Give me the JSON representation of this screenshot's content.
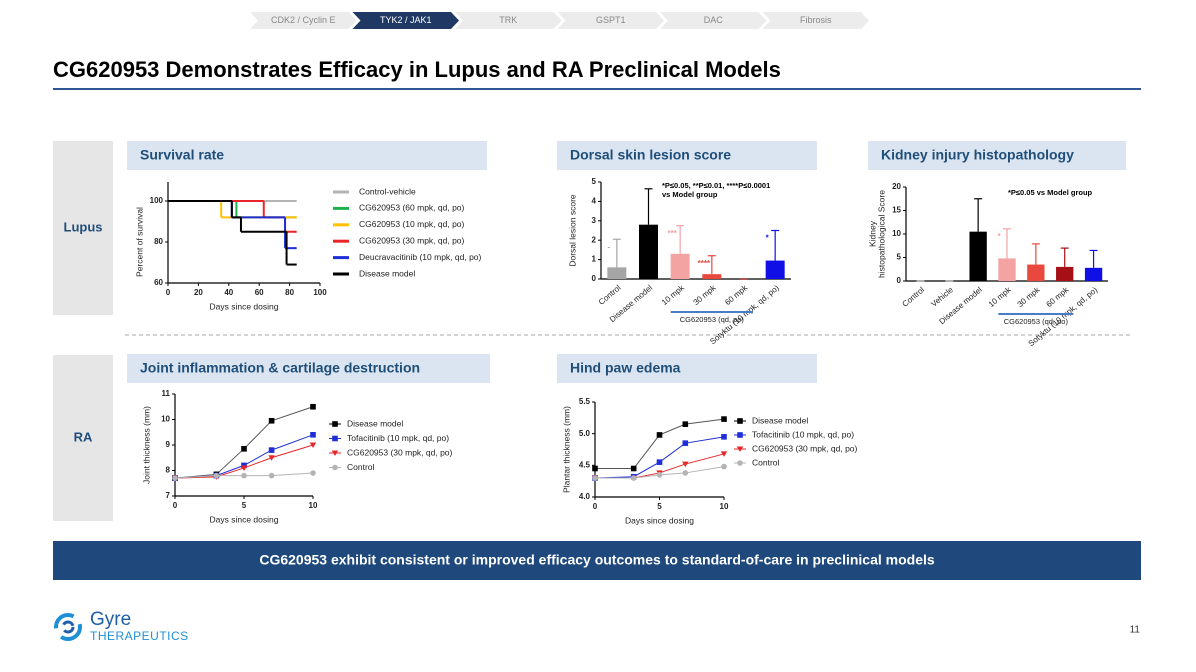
{
  "nav": {
    "tabs": [
      "CDK2 / Cyclin E",
      "TYK2 / JAK1",
      "TRK",
      "GSPT1",
      "DAC",
      "Fibrosis"
    ],
    "active": 1
  },
  "header": {
    "title": "CG620953 Demonstrates Efficacy in Lupus and RA Preclinical Models"
  },
  "sections": [
    "Lupus",
    "RA"
  ],
  "chart_data": [
    {
      "type": "step",
      "title": "Survival rate",
      "xlabel": "Days since dosing",
      "ylabel": "Percent of survival",
      "xlim": [
        0,
        100
      ],
      "xticks": [
        0,
        20,
        40,
        60,
        80,
        100
      ],
      "ylim": [
        60,
        100
      ],
      "yticks": [
        60,
        80,
        100
      ],
      "series": [
        {
          "name": "Control-vehicle",
          "color": "#b4b4b4",
          "x": [
            0,
            84
          ],
          "values": [
            100,
            100
          ]
        },
        {
          "name": "CG620953 (60 mpk, qd, po)",
          "color": "#1fb04b",
          "x": [
            0,
            45,
            84
          ],
          "values": [
            100,
            92,
            92
          ]
        },
        {
          "name": "CG620953 (10 mpk, qd, po)",
          "color": "#ffc000",
          "x": [
            0,
            35,
            84
          ],
          "values": [
            100,
            92,
            92
          ]
        },
        {
          "name": "CG620953 (30 mpk, qd, po)",
          "color": "#e8262a",
          "x": [
            0,
            63,
            77,
            84
          ],
          "values": [
            100,
            92,
            85,
            85
          ]
        },
        {
          "name": "Deucravacitinib (10 mpk, qd, po)",
          "color": "#1f2fd8",
          "x": [
            0,
            42,
            77,
            84
          ],
          "values": [
            100,
            92,
            77,
            77
          ]
        },
        {
          "name": "Disease model",
          "color": "#000000",
          "x": [
            0,
            42,
            48,
            75,
            78,
            84
          ],
          "values": [
            100,
            92,
            85,
            85,
            69,
            69
          ]
        }
      ]
    },
    {
      "type": "bar",
      "title": "Dorsal skin lesion score",
      "ylabel": "Dorsal lesion score",
      "note": [
        "*P≤0.05, **P≤0.01, ****P≤0.0001",
        "vs Model group"
      ],
      "group_label": "CG620953 (qd, po)",
      "categories": [
        "Control",
        "Disease model",
        "10 mpk",
        "30 mpk",
        "60 mpk",
        "Sotyktu (10 mpk, qd, po)"
      ],
      "values": [
        0.6,
        2.8,
        1.3,
        0.25,
        0,
        0.95
      ],
      "errors": [
        1.45,
        1.85,
        1.45,
        0.95,
        0,
        1.55
      ],
      "colors": [
        "#a6a6a6",
        "#000000",
        "#f4a3a3",
        "#e8483e",
        "#a50f15",
        "#1010e6"
      ],
      "sig": [
        "-",
        null,
        "***",
        "****",
        null,
        "*"
      ],
      "ylim": [
        0,
        5
      ],
      "yticks": [
        0,
        1,
        2,
        3,
        4,
        5
      ]
    },
    {
      "type": "bar",
      "title": "Kidney injury histopathology",
      "ylabel": [
        "Kidney",
        "histopathological Score"
      ],
      "note": [
        "*P≤0.05 vs Model group"
      ],
      "group_label": "CG620953 (qd, po)",
      "categories": [
        "Control",
        "Vehicle",
        "Disease model",
        "10 mpk",
        "30 mpk",
        "60 mpk",
        "Sotyktu (10 mpk, qd, po)"
      ],
      "values": [
        0,
        0,
        10.5,
        4.8,
        3.5,
        3,
        2.8
      ],
      "errors": [
        0,
        0,
        7,
        6.3,
        4.4,
        4,
        3.7
      ],
      "colors": [
        "#a6a6a6",
        "#a6a6a6",
        "#000000",
        "#f4a3a3",
        "#e8483e",
        "#a50f15",
        "#1010e6"
      ],
      "sig": [
        null,
        null,
        null,
        "*",
        null,
        null,
        null
      ],
      "ylim": [
        0,
        20
      ],
      "yticks": [
        0,
        5,
        10,
        15,
        20
      ]
    },
    {
      "type": "line",
      "title": "Joint inflammation & cartilage destruction",
      "xlabel": "Days since dosing",
      "ylabel": "Joint thickness (mm)",
      "x": [
        0,
        3,
        5,
        7,
        10
      ],
      "xlim": [
        0,
        10
      ],
      "xticks": [
        0,
        5,
        10
      ],
      "ylim": [
        7,
        11
      ],
      "yticks": [
        7,
        8,
        9,
        10,
        11
      ],
      "series": [
        {
          "name": "Disease model",
          "color": "#000000",
          "marker": "square",
          "values": [
            7.7,
            7.85,
            8.85,
            9.95,
            10.5
          ]
        },
        {
          "name": "Tofacitinib (10 mpk, qd, po)",
          "color": "#1f2fd8",
          "marker": "square",
          "values": [
            7.7,
            7.8,
            8.2,
            8.8,
            9.4
          ]
        },
        {
          "name": "CG620953 (30 mpk, qd, po)",
          "color": "#e8262a",
          "marker": "triangle",
          "values": [
            7.7,
            7.75,
            8.1,
            8.5,
            9.0
          ]
        },
        {
          "name": "Control",
          "color": "#b4b4b4",
          "marker": "circle",
          "values": [
            7.7,
            7.8,
            7.8,
            7.8,
            7.9
          ]
        }
      ]
    },
    {
      "type": "line",
      "title": "Hind paw edema",
      "xlabel": "Days since dosing",
      "ylabel": "Plantar thickness (mm)",
      "x": [
        0,
        3,
        5,
        7,
        10
      ],
      "xlim": [
        0,
        10
      ],
      "xticks": [
        0,
        5,
        10
      ],
      "ylim": [
        4,
        5.5
      ],
      "yticks": [
        {
          "value": 4,
          "label": "4.0"
        },
        4.5,
        {
          "value": 5,
          "label": "5.0"
        },
        5.5
      ],
      "series": [
        {
          "name": "Disease model",
          "color": "#000000",
          "marker": "square",
          "values": [
            4.45,
            4.45,
            4.98,
            5.15,
            5.23
          ]
        },
        {
          "name": "Tofacitinib (10 mpk, qd, po)",
          "color": "#1f2fd8",
          "marker": "square",
          "values": [
            4.3,
            4.32,
            4.55,
            4.85,
            4.95
          ]
        },
        {
          "name": "CG620953 (30 mpk, qd, po)",
          "color": "#e8262a",
          "marker": "triangle",
          "values": [
            4.3,
            4.3,
            4.38,
            4.52,
            4.68
          ]
        },
        {
          "name": "Control",
          "color": "#b4b4b4",
          "marker": "circle",
          "values": [
            4.3,
            4.3,
            4.35,
            4.38,
            4.48
          ]
        }
      ]
    }
  ],
  "banner": "CG620953 exhibit consistent or improved efficacy outcomes to standard-of-care in preclinical models",
  "logo": {
    "name": "Gyre",
    "sub": "THERAPEUTICS"
  },
  "page_number": 11
}
